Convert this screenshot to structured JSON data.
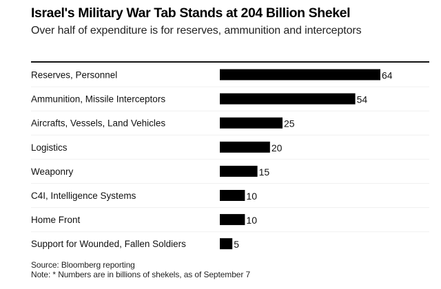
{
  "chart_data": {
    "type": "bar",
    "orientation": "horizontal",
    "title": "Israel's Military War Tab Stands at 204 Billion Shekel",
    "subtitle": "Over half of expenditure is for reserves, ammunition and interceptors",
    "categories": [
      "Reserves, Personnel",
      "Ammunition, Missile Interceptors",
      "Aircrafts, Vessels, Land Vehicles",
      "Logistics",
      "Weaponry",
      "C4I, Intelligence Systems",
      "Home Front",
      "Support for Wounded, Fallen Soldiers"
    ],
    "values": [
      64,
      54,
      25,
      20,
      15,
      10,
      10,
      5
    ],
    "data_labels": [
      "64",
      "54",
      "25",
      "20",
      "15",
      "10",
      "10",
      "5"
    ],
    "xlabel": "",
    "ylabel": "",
    "xlim": [
      0,
      64
    ],
    "grid": false,
    "legend": "none",
    "bar_color": "#000000",
    "source": "Source: Bloomberg reporting",
    "note": "Note: * Numbers are in billions of shekels, as of September 7"
  }
}
